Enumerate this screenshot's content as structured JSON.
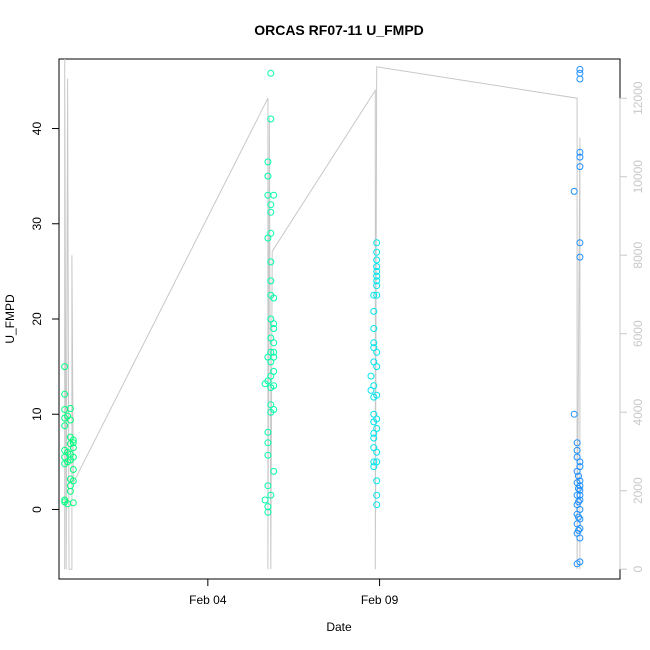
{
  "chart_data": {
    "type": "scatter",
    "title": "ORCAS RF07-11 U_FMPD",
    "xlabel": "Date",
    "ylabel": "U_FMPD",
    "x_axis": {
      "type": "date",
      "range": [
        "2016-01-30T16:00",
        "2016-02-16T00:00"
      ],
      "ticks": [
        {
          "value": "2016-02-04T00:00",
          "label": "Feb 04"
        },
        {
          "value": "2016-02-09T00:00",
          "label": "Feb 09"
        }
      ]
    },
    "y_axis": {
      "range": [
        -7.3,
        47.3
      ],
      "ticks": [
        0,
        10,
        20,
        30,
        40
      ]
    },
    "y2_axis": {
      "range": [
        -250,
        13000
      ],
      "ticks": [
        0,
        2000,
        4000,
        6000,
        8000,
        10000,
        12000
      ],
      "color": "#c8c8c8"
    },
    "grid": false,
    "series": [
      {
        "color": "#00ff7f",
        "points": [
          [
            "2016-01-30T20:00",
            15.0
          ],
          [
            "2016-01-30T20:00",
            12.1
          ],
          [
            "2016-01-30T20:00",
            10.5
          ],
          [
            "2016-01-30T20:00",
            9.6
          ],
          [
            "2016-01-30T20:00",
            8.8
          ],
          [
            "2016-01-30T20:00",
            6.2
          ],
          [
            "2016-01-30T20:00",
            5.5
          ],
          [
            "2016-01-30T20:00",
            4.8
          ],
          [
            "2016-01-30T20:00",
            1.0
          ],
          [
            "2016-01-30T20:00",
            0.8
          ],
          [
            "2016-01-30T22:00",
            0.6
          ],
          [
            "2016-01-30T22:00",
            5.0
          ],
          [
            "2016-01-30T22:00",
            6.0
          ],
          [
            "2016-01-30T22:00",
            9.8
          ],
          [
            "2016-01-31T00:00",
            9.4
          ],
          [
            "2016-01-31T00:00",
            10.6
          ],
          [
            "2016-01-31T00:00",
            7.6
          ],
          [
            "2016-01-31T00:00",
            6.9
          ],
          [
            "2016-01-31T00:00",
            5.8
          ],
          [
            "2016-01-31T00:00",
            5.2
          ],
          [
            "2016-01-31T00:00",
            3.2
          ],
          [
            "2016-01-31T00:00",
            2.5
          ],
          [
            "2016-01-31T00:00",
            1.9
          ],
          [
            "2016-01-31T02:00",
            7.3
          ],
          [
            "2016-01-31T02:00",
            6.5
          ],
          [
            "2016-01-31T02:00",
            5.5
          ],
          [
            "2016-01-31T02:00",
            4.2
          ],
          [
            "2016-01-31T02:00",
            3.0
          ],
          [
            "2016-01-31T02:00",
            0.7
          ],
          [
            "2016-01-31T02:00",
            7.0
          ]
        ]
      },
      {
        "color": "#00ffa8",
        "points": [
          [
            "2016-02-05T16:00",
            13.2
          ],
          [
            "2016-02-05T16:00",
            1.0
          ],
          [
            "2016-02-05T18:00",
            36.5
          ],
          [
            "2016-02-05T18:00",
            35.0
          ],
          [
            "2016-02-05T18:00",
            33.0
          ],
          [
            "2016-02-05T18:00",
            28.5
          ],
          [
            "2016-02-05T18:00",
            16.0
          ],
          [
            "2016-02-05T18:00",
            13.5
          ],
          [
            "2016-02-05T18:00",
            8.1
          ],
          [
            "2016-02-05T18:00",
            7.0
          ],
          [
            "2016-02-05T18:00",
            5.7
          ],
          [
            "2016-02-05T18:00",
            2.5
          ],
          [
            "2016-02-05T18:00",
            0.3
          ],
          [
            "2016-02-05T18:00",
            -0.3
          ],
          [
            "2016-02-05T20:00",
            45.8
          ],
          [
            "2016-02-05T20:00",
            41.0
          ],
          [
            "2016-02-05T20:00",
            32.0
          ],
          [
            "2016-02-05T20:00",
            31.2
          ],
          [
            "2016-02-05T20:00",
            29.0
          ],
          [
            "2016-02-05T20:00",
            26.0
          ],
          [
            "2016-02-05T20:00",
            24.0
          ],
          [
            "2016-02-05T20:00",
            22.5
          ],
          [
            "2016-02-05T20:00",
            20.0
          ],
          [
            "2016-02-05T20:00",
            18.0
          ],
          [
            "2016-02-05T20:00",
            16.5
          ],
          [
            "2016-02-05T20:00",
            15.5
          ],
          [
            "2016-02-05T20:00",
            14.0
          ],
          [
            "2016-02-05T20:00",
            12.8
          ],
          [
            "2016-02-05T20:00",
            11.0
          ],
          [
            "2016-02-05T20:00",
            10.2
          ],
          [
            "2016-02-05T20:00",
            1.5
          ],
          [
            "2016-02-05T22:00",
            33.0
          ],
          [
            "2016-02-05T22:00",
            22.2
          ],
          [
            "2016-02-05T22:00",
            19.5
          ],
          [
            "2016-02-05T22:00",
            19.0
          ],
          [
            "2016-02-05T22:00",
            17.5
          ],
          [
            "2016-02-05T22:00",
            16.5
          ],
          [
            "2016-02-05T22:00",
            16.0
          ],
          [
            "2016-02-05T22:00",
            14.5
          ],
          [
            "2016-02-05T22:00",
            13.0
          ],
          [
            "2016-02-05T22:00",
            10.5
          ],
          [
            "2016-02-05T22:00",
            4.0
          ]
        ]
      },
      {
        "color": "#00e5ee",
        "points": [
          [
            "2016-02-08T20:00",
            22.5
          ],
          [
            "2016-02-08T20:00",
            20.8
          ],
          [
            "2016-02-08T20:00",
            19.0
          ],
          [
            "2016-02-08T20:00",
            17.5
          ],
          [
            "2016-02-08T20:00",
            17.0
          ],
          [
            "2016-02-08T20:00",
            15.5
          ],
          [
            "2016-02-08T20:00",
            13.0
          ],
          [
            "2016-02-08T20:00",
            11.8
          ],
          [
            "2016-02-08T20:00",
            10.0
          ],
          [
            "2016-02-08T20:00",
            9.2
          ],
          [
            "2016-02-08T20:00",
            8.0
          ],
          [
            "2016-02-08T20:00",
            7.5
          ],
          [
            "2016-02-08T20:00",
            6.5
          ],
          [
            "2016-02-08T20:00",
            5.0
          ],
          [
            "2016-02-08T20:00",
            4.5
          ],
          [
            "2016-02-08T22:00",
            28.0
          ],
          [
            "2016-02-08T22:00",
            27.0
          ],
          [
            "2016-02-08T22:00",
            26.2
          ],
          [
            "2016-02-08T22:00",
            25.5
          ],
          [
            "2016-02-08T22:00",
            25.0
          ],
          [
            "2016-02-08T22:00",
            24.5
          ],
          [
            "2016-02-08T22:00",
            24.0
          ],
          [
            "2016-02-08T22:00",
            23.5
          ],
          [
            "2016-02-08T22:00",
            22.5
          ],
          [
            "2016-02-08T22:00",
            16.5
          ],
          [
            "2016-02-08T22:00",
            15.0
          ],
          [
            "2016-02-08T22:00",
            12.0
          ],
          [
            "2016-02-08T22:00",
            9.5
          ],
          [
            "2016-02-08T22:00",
            8.5
          ],
          [
            "2016-02-08T22:00",
            6.0
          ],
          [
            "2016-02-08T22:00",
            5.0
          ],
          [
            "2016-02-08T22:00",
            3.0
          ],
          [
            "2016-02-08T22:00",
            1.5
          ],
          [
            "2016-02-08T22:00",
            0.5
          ],
          [
            "2016-02-08T18:00",
            14.0
          ],
          [
            "2016-02-08T18:00",
            12.5
          ]
        ]
      },
      {
        "color": "#1e90ff",
        "points": [
          [
            "2016-02-14T16:00",
            33.4
          ],
          [
            "2016-02-14T16:00",
            10.0
          ],
          [
            "2016-02-14T18:00",
            5.5
          ],
          [
            "2016-02-14T18:00",
            4.0
          ],
          [
            "2016-02-14T18:00",
            2.8
          ],
          [
            "2016-02-14T18:00",
            1.5
          ],
          [
            "2016-02-14T18:00",
            0.5
          ],
          [
            "2016-02-14T18:00",
            -0.5
          ],
          [
            "2016-02-14T18:00",
            -1.5
          ],
          [
            "2016-02-14T18:00",
            -2.5
          ],
          [
            "2016-02-14T18:00",
            -5.7
          ],
          [
            "2016-02-14T18:00",
            7.0
          ],
          [
            "2016-02-14T18:00",
            6.2
          ],
          [
            "2016-02-14T20:00",
            46.2
          ],
          [
            "2016-02-14T20:00",
            45.8
          ],
          [
            "2016-02-14T20:00",
            45.2
          ],
          [
            "2016-02-14T20:00",
            37.5
          ],
          [
            "2016-02-14T20:00",
            37.0
          ],
          [
            "2016-02-14T20:00",
            36.0
          ],
          [
            "2016-02-14T20:00",
            28.0
          ],
          [
            "2016-02-14T20:00",
            26.5
          ],
          [
            "2016-02-14T20:00",
            5.0
          ],
          [
            "2016-02-14T20:00",
            4.5
          ],
          [
            "2016-02-14T20:00",
            3.0
          ],
          [
            "2016-02-14T20:00",
            2.5
          ],
          [
            "2016-02-14T20:00",
            2.0
          ],
          [
            "2016-02-14T20:00",
            1.5
          ],
          [
            "2016-02-14T20:00",
            1.0
          ],
          [
            "2016-02-14T20:00",
            0.0
          ],
          [
            "2016-02-14T20:00",
            -1.0
          ],
          [
            "2016-02-14T20:00",
            -2.0
          ],
          [
            "2016-02-14T20:00",
            -3.0
          ],
          [
            "2016-02-14T20:00",
            -5.5
          ],
          [
            "2016-02-14T19:00",
            3.5
          ],
          [
            "2016-02-14T19:00",
            2.2
          ],
          [
            "2016-02-14T19:00",
            0.8
          ],
          [
            "2016-02-14T19:00",
            -0.8
          ],
          [
            "2016-02-14T19:00",
            -2.2
          ]
        ]
      },
      {
        "color": "#c8c8c8",
        "axis": "y2",
        "style": "line",
        "points": [
          [
            "2016-01-30T20:00",
            0
          ],
          [
            "2016-01-30T20:00",
            13000
          ],
          [
            "2016-01-30T21:00",
            0
          ],
          [
            "2016-01-30T22:00",
            12500
          ],
          [
            "2016-01-30T23:00",
            0
          ],
          [
            "2016-01-31T01:00",
            0
          ],
          [
            "2016-01-31T01:00",
            8000
          ],
          [
            "2016-01-31T02:00",
            2200
          ],
          [
            "2016-02-05T18:00",
            12000
          ],
          [
            "2016-02-05T18:00",
            0
          ],
          [
            "2016-02-05T19:00",
            11500
          ],
          [
            "2016-02-05T20:00",
            0
          ],
          [
            "2016-02-05T21:00",
            8100
          ],
          [
            "2016-02-08T21:00",
            12200
          ],
          [
            "2016-02-08T21:00",
            0
          ],
          [
            "2016-02-08T22:00",
            12800
          ],
          [
            "2016-02-14T18:00",
            12000
          ],
          [
            "2016-02-14T18:00",
            0
          ],
          [
            "2016-02-14T20:00",
            11000
          ],
          [
            "2016-02-14T20:00",
            0
          ]
        ]
      }
    ]
  }
}
